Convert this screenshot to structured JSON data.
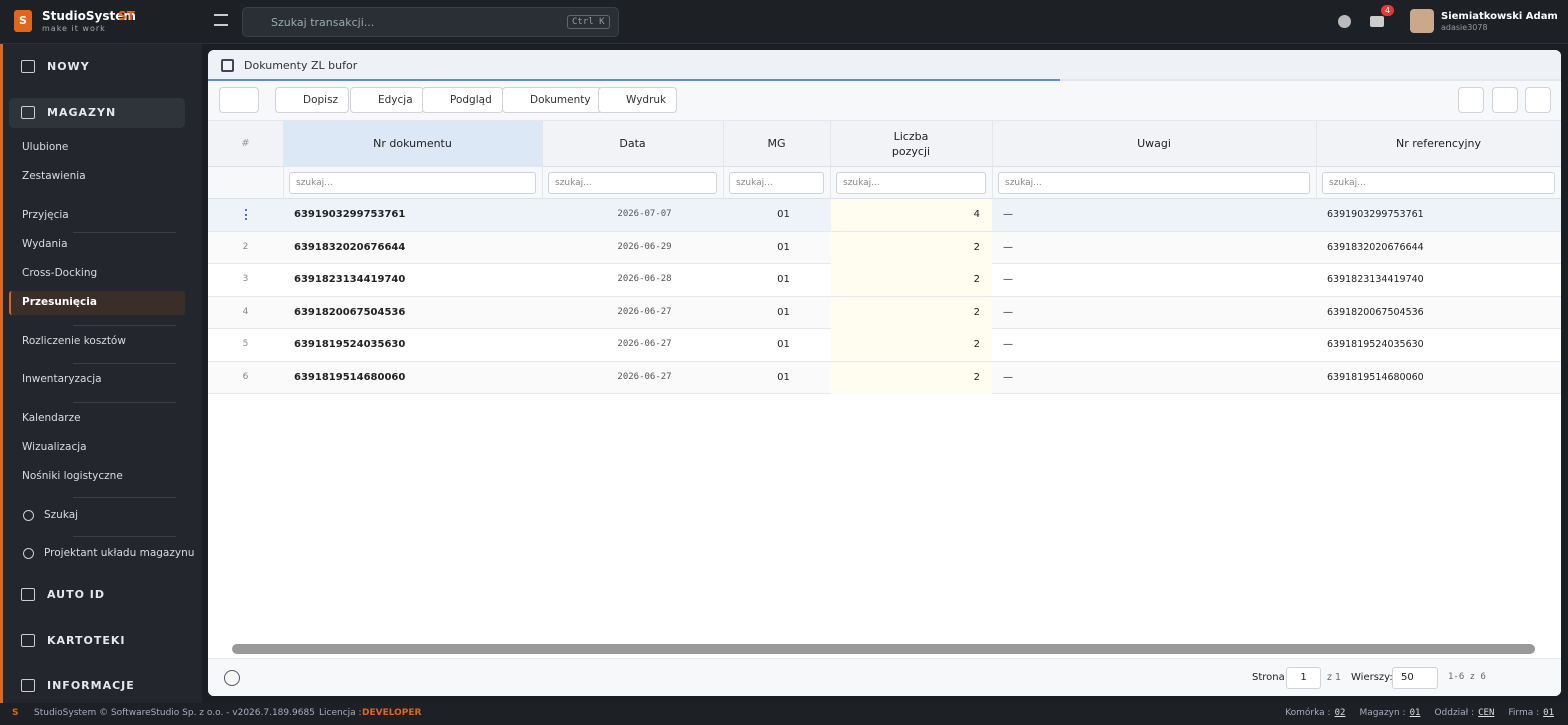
{
  "header": {
    "brand": "StudioSystem",
    "brand_suffix": "ST",
    "tagline": "make it work",
    "search_placeholder": "Szukaj transakcji...",
    "shortcut": "Ctrl K",
    "notifications": "4",
    "user_name": "Siemiatkowski Adam",
    "user_login": "adasie3078"
  },
  "sidebar": {
    "items": [
      {
        "label": "NOWY",
        "kind": "section"
      },
      {
        "label": "MAGAZYN",
        "kind": "section-open"
      },
      {
        "label": "Ulubione",
        "kind": "sub"
      },
      {
        "label": "Zestawienia",
        "kind": "sub"
      },
      {
        "label": "Przyjęcia",
        "kind": "sub"
      },
      {
        "label": "Wydania",
        "kind": "sub"
      },
      {
        "label": "Cross-Docking",
        "kind": "sub"
      },
      {
        "label": "Przesunięcia",
        "kind": "active"
      },
      {
        "label": "Rozliczenie kosztów",
        "kind": "sub"
      },
      {
        "label": "Inwentaryzacja",
        "kind": "sub"
      },
      {
        "label": "Kalendarze",
        "kind": "sub"
      },
      {
        "label": "Wizualizacja",
        "kind": "sub"
      },
      {
        "label": "Nośniki logistyczne",
        "kind": "sub"
      },
      {
        "label": "Szukaj",
        "kind": "tool"
      },
      {
        "label": "Projektant układu magazynu",
        "kind": "tool"
      },
      {
        "label": "AUTO ID",
        "kind": "section"
      },
      {
        "label": "KARTOTEKI",
        "kind": "section"
      },
      {
        "label": "INFORMACJE",
        "kind": "section"
      }
    ]
  },
  "breadcrumb": "Dokumenty ZL bufor",
  "toolbar": [
    "Dopisz",
    "Edycja",
    "Podgląd",
    "Dokumenty",
    "Wydruk"
  ],
  "table": {
    "columns": [
      "#",
      "Nr dokumentu",
      "Data",
      "MG",
      "Liczba\npozycji",
      "Uwagi",
      "Nr referencyjny"
    ],
    "filter_placeholder": "szukaj...",
    "rows": [
      [
        null,
        "6391903299753761",
        "2026-07-07",
        "01",
        "4",
        "—",
        "6391903299753761"
      ],
      [
        "2",
        "6391832020676644",
        "2026-06-29",
        "01",
        "2",
        "—",
        "6391832020676644"
      ],
      [
        "3",
        "6391823134419740",
        "2026-06-28",
        "01",
        "2",
        "—",
        "6391823134419740"
      ],
      [
        "4",
        "6391820067504536",
        "2026-06-27",
        "01",
        "2",
        "—",
        "6391820067504536"
      ],
      [
        "5",
        "6391819524035630",
        "2026-06-27",
        "01",
        "2",
        "—",
        "6391819524035630"
      ],
      [
        "6",
        "6391819514680060",
        "2026-06-27",
        "01",
        "2",
        "—",
        "6391819514680060"
      ]
    ]
  },
  "pagination": {
    "page_label": "Strona",
    "page": "1",
    "page_total": "z 1",
    "rows_label": "Wierszy:",
    "rows": "50",
    "range": "1-6 z 6"
  },
  "footer": {
    "copyright": "StudioSystem © SoftwareStudio Sp. z o.o. - v2026.7.189.9685",
    "license_label": "Licencja :",
    "license": "DEVELOPER",
    "context": [
      {
        "label": "Komórka :",
        "value": "02"
      },
      {
        "label": "Magazyn :",
        "value": "01"
      },
      {
        "label": "Oddział :",
        "value": "CEN"
      },
      {
        "label": "Firma :",
        "value": "01"
      }
    ]
  }
}
